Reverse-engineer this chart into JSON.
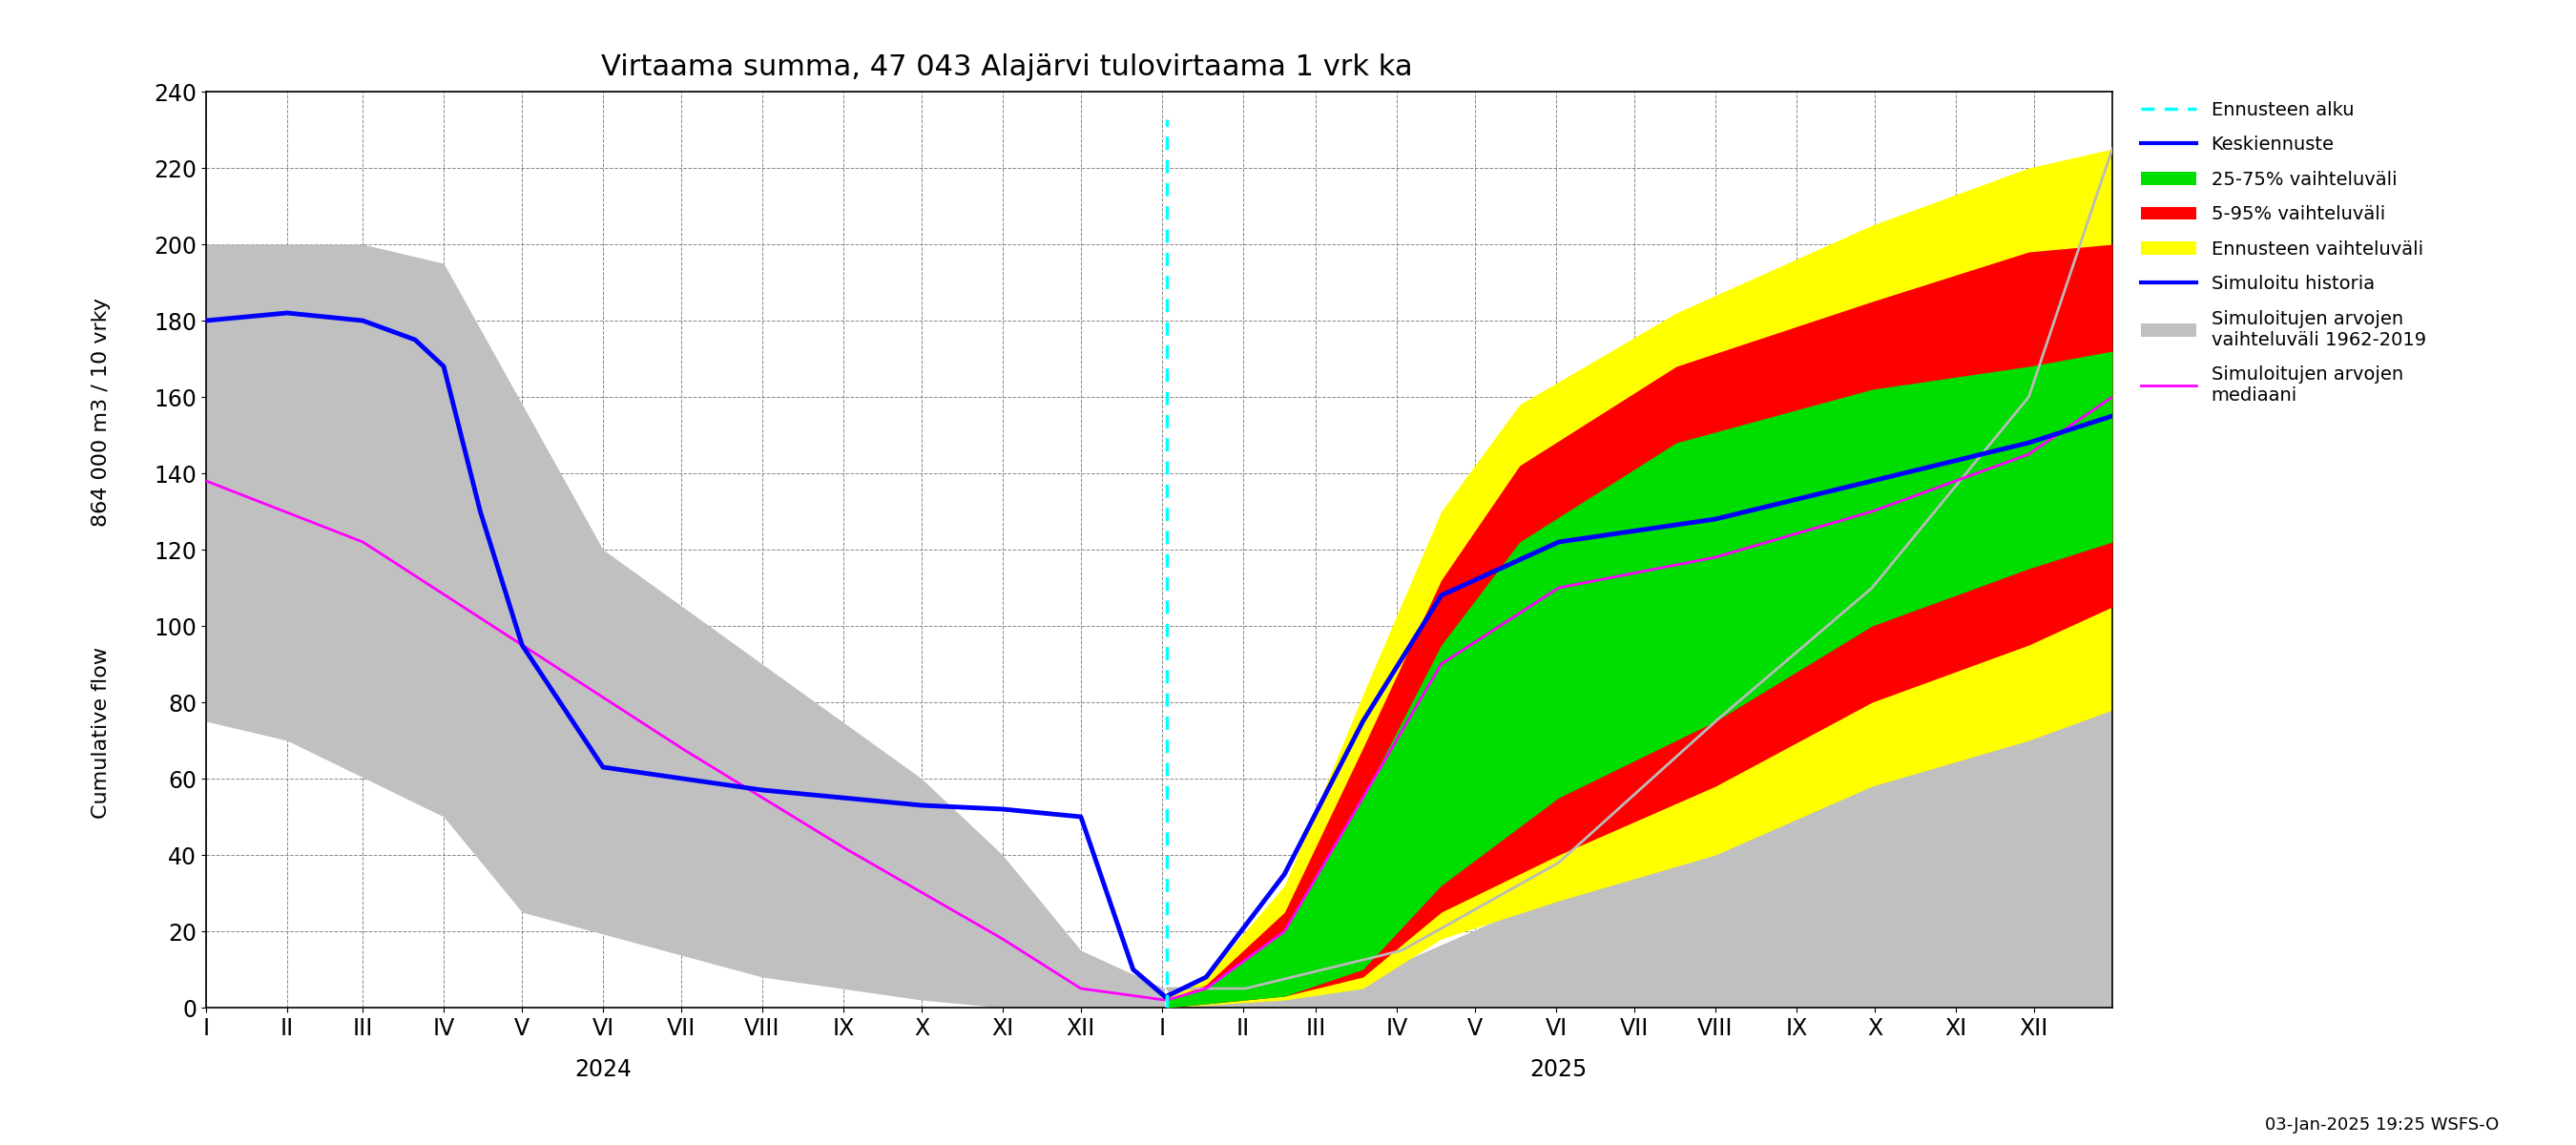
{
  "title": "Virtaama summa, 47 043 Alajärvi tulovirtaama 1 vrk ka",
  "ylabel_top": "864 000 m3 / 10 vrky",
  "ylabel_bottom": "Cumulative flow",
  "ylim": [
    0,
    240
  ],
  "yticks": [
    0,
    20,
    40,
    60,
    80,
    100,
    120,
    140,
    160,
    180,
    200,
    220,
    240
  ],
  "footnote": "03-Jan-2025 19:25 WSFS-O",
  "background_color": "#ffffff"
}
